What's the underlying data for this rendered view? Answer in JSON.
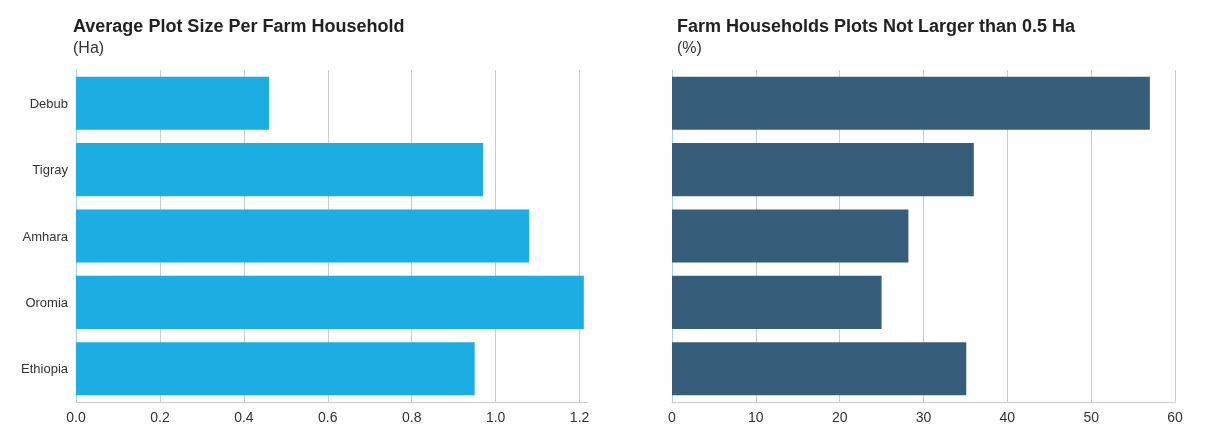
{
  "chart_data": [
    {
      "type": "bar",
      "orientation": "horizontal",
      "title": "Average Plot Size Per Farm Household",
      "subtitle": "(Ha)",
      "categories": [
        "Debub",
        "Tigray",
        "Amhara",
        "Oromia",
        "Ethiopia"
      ],
      "values": [
        0.46,
        0.97,
        1.08,
        1.21,
        0.95
      ],
      "color": "#1cade3",
      "xlim": [
        0,
        1.22
      ],
      "xticks": [
        {
          "value": 0,
          "label": "0.0"
        },
        0.2,
        0.4,
        0.6,
        0.8,
        {
          "value": 1,
          "label": "1.0"
        },
        1.2
      ],
      "grid": "x"
    },
    {
      "type": "bar",
      "orientation": "horizontal",
      "title": "Farm Households Plots Not Larger than 0.5 Ha",
      "subtitle": "(%)",
      "categories": [
        null,
        null,
        null,
        null,
        null
      ],
      "values": [
        57.0,
        36.0,
        28.2,
        25.0,
        35.1
      ],
      "color": "#365d79",
      "xlim": [
        0,
        60
      ],
      "xticks": [
        0,
        10,
        20,
        30,
        40,
        50,
        60
      ],
      "grid": "x",
      "tick_labels": "x"
    }
  ]
}
